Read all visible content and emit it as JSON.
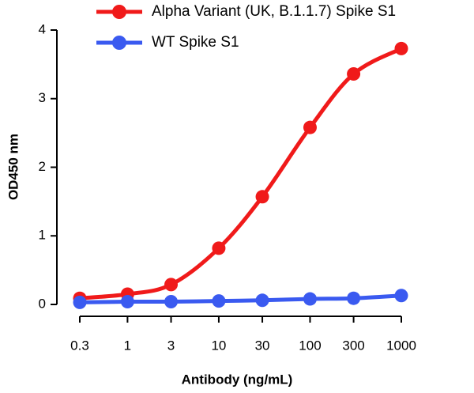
{
  "chart_data": {
    "type": "line",
    "x_label": "Antibody (ng/mL)",
    "y_label": "OD450 nm",
    "x": [
      0.3,
      1,
      3,
      10,
      30,
      100,
      300,
      1000
    ],
    "xscale": "log",
    "xlim": [
      0.3,
      1000
    ],
    "xticks": [
      0.3,
      1,
      3,
      10,
      30,
      100,
      300,
      1000
    ],
    "ylim": [
      0,
      4
    ],
    "yticks": [
      0,
      1,
      2,
      3,
      4
    ],
    "legend": "top",
    "series": [
      {
        "name": "Alpha Variant (UK, B.1.1.7) Spike S1",
        "color": "#f01a1a",
        "values": [
          0.09,
          0.15,
          0.29,
          0.82,
          1.57,
          2.58,
          3.36,
          3.73
        ]
      },
      {
        "name": "WT Spike S1",
        "color": "#3a5af0",
        "values": [
          0.03,
          0.04,
          0.04,
          0.05,
          0.06,
          0.08,
          0.09,
          0.13
        ]
      }
    ]
  }
}
